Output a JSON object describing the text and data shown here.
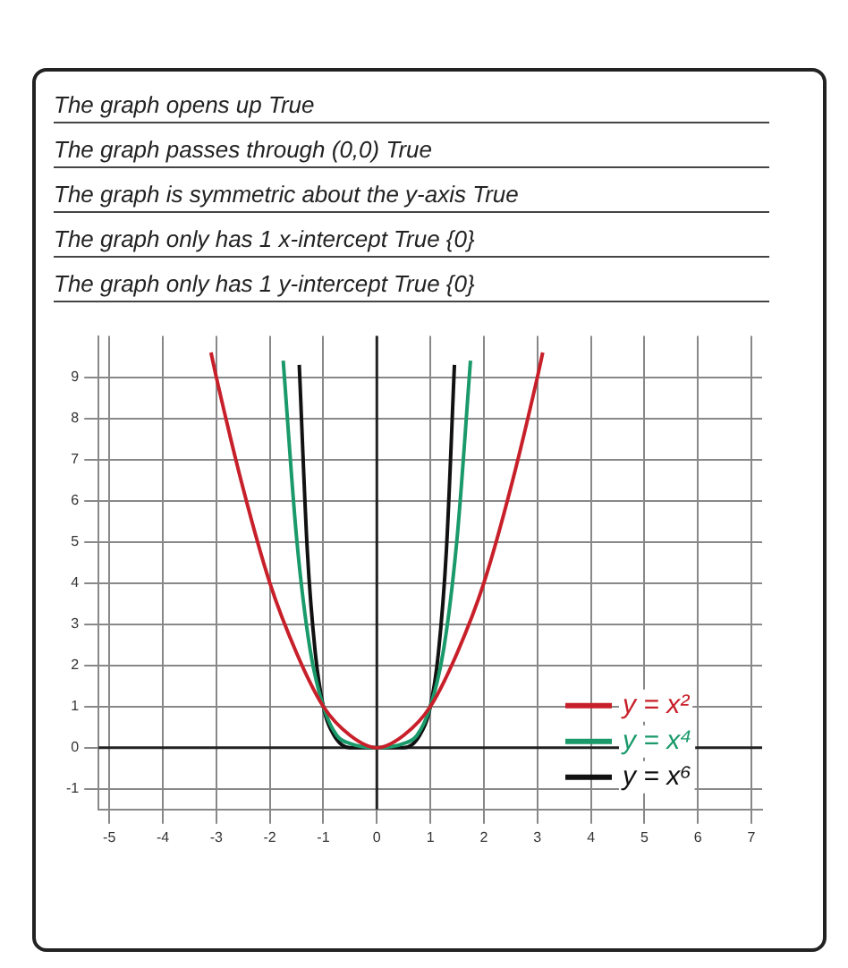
{
  "chart_data": {
    "type": "line",
    "annotations": [
      "The graph opens up True",
      "The graph passes through (0,0) True",
      "The graph is symmetric about the y-axis True",
      "The graph only has 1 x-intercept True {0}",
      "The graph only has 1 y-intercept True {0}"
    ],
    "series": [
      {
        "name": "y = x²",
        "color": "#c8202a",
        "x": [
          -3.1,
          -3,
          -2.5,
          -2,
          -1.5,
          -1,
          -0.5,
          0,
          0.5,
          1,
          1.5,
          2,
          2.5,
          3,
          3.1
        ],
        "values": [
          9.6,
          9,
          6.3,
          4,
          2.3,
          1,
          0.3,
          0,
          0.3,
          1,
          2.3,
          4,
          6.3,
          9,
          9.6
        ]
      },
      {
        "name": "y = x⁴",
        "color": "#1a9a6a",
        "x": [
          -1.75,
          -1.5,
          -1.25,
          -1,
          -0.75,
          -0.5,
          0,
          0.5,
          0.75,
          1,
          1.25,
          1.5,
          1.75
        ],
        "values": [
          9.4,
          5.1,
          2.4,
          1,
          0.3,
          0.1,
          0,
          0.1,
          0.3,
          1,
          2.4,
          5.1,
          9.4
        ]
      },
      {
        "name": "y = x⁶",
        "color": "#111111",
        "x": [
          -1.45,
          -1.3,
          -1.15,
          -1,
          -0.8,
          -0.5,
          0,
          0.5,
          0.8,
          1,
          1.15,
          1.3,
          1.45
        ],
        "values": [
          9.3,
          4.8,
          2.3,
          1,
          0.3,
          0,
          0,
          0,
          0.3,
          1,
          2.3,
          4.8,
          9.3
        ]
      }
    ],
    "xlim": [
      -5.2,
      7.2
    ],
    "xticks": [
      -5,
      -4,
      -3,
      -2,
      -1,
      0,
      1,
      2,
      3,
      4,
      5,
      6,
      7
    ],
    "ylim": [
      -1.5,
      10
    ],
    "yticks": [
      -1,
      0,
      1,
      2,
      3,
      4,
      5,
      6,
      7,
      8,
      9
    ],
    "grid": true,
    "legend": "bottom right",
    "marker": "none",
    "line_style": "solid"
  }
}
